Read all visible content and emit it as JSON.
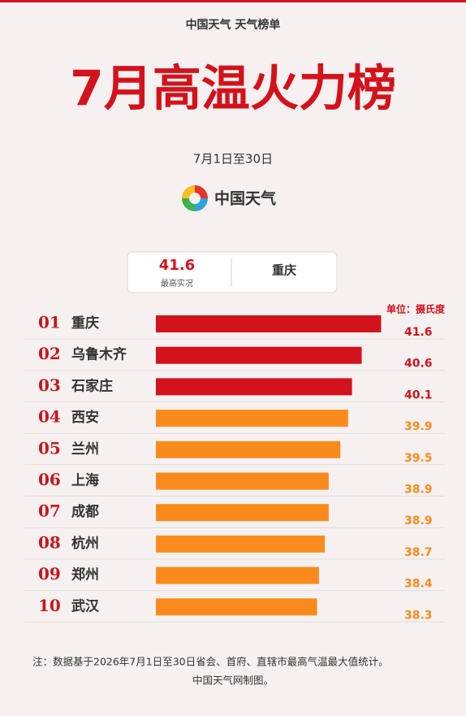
{
  "chart_data": {
    "type": "bar",
    "header": "中国天气 天气榜单",
    "title": "7月高温火力榜",
    "subtitle": "7月1日至30日",
    "brand": "中国天气",
    "highlight": {
      "value": 41.6,
      "label": "最高实况",
      "city": "重庆"
    },
    "unit": "单位：摄氏度",
    "ranks": [
      "01",
      "02",
      "03",
      "04",
      "05",
      "06",
      "07",
      "08",
      "09",
      "10"
    ],
    "categories": [
      "重庆",
      "乌鲁木齐",
      "石家庄",
      "西安",
      "兰州",
      "上海",
      "成都",
      "杭州",
      "郑州",
      "武汉"
    ],
    "values": [
      41.6,
      40.6,
      40.1,
      39.9,
      39.5,
      38.9,
      38.9,
      38.7,
      38.4,
      38.3
    ],
    "colors": [
      "#d3121c",
      "#d3121c",
      "#d3121c",
      "#fb8a1c",
      "#fb8a1c",
      "#fb8a1c",
      "#fb8a1c",
      "#fb8a1c",
      "#fb8a1c",
      "#fb8a1c"
    ],
    "xlim": [
      30,
      42
    ],
    "note": "注：数据基于2026年7月1日至30日省会、首府、直辖市最高气温最大值统计。",
    "credit": "中国天气网制图。"
  }
}
